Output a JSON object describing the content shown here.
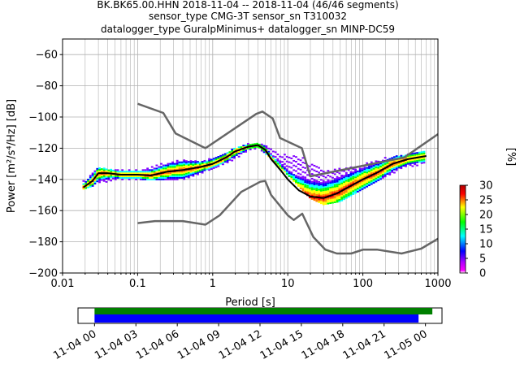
{
  "title_lines": [
    "BK.BK65.00.HHN   2018-11-04 -- 2018-11-04  (46/46 segments)",
    "sensor_type CMG-3T sensor_sn T310032",
    "datalogger_type GuralpMinimus+ datalogger_sn MINP-DC59"
  ],
  "chart_data": {
    "type": "heatmap",
    "xlabel": "Period [s]",
    "ylabel": "Power [m²/s⁴/Hz] [dB]",
    "x_scale": "log",
    "xlim": [
      0.01,
      1000
    ],
    "ylim": [
      -200,
      -50
    ],
    "x_tick_labels": [
      "0.01",
      "0.1",
      "1",
      "10",
      "100",
      "1000"
    ],
    "y_tick_labels": [
      "−200",
      "−180",
      "−160",
      "−140",
      "−120",
      "−100",
      "−80",
      "−60"
    ],
    "grid": true,
    "colorbar": {
      "label": "[%]",
      "ticks": [
        "0",
        "5",
        "10",
        "15",
        "20",
        "25",
        "30"
      ],
      "range": [
        0,
        30
      ]
    },
    "series": [
      {
        "kind": "noise_model_high",
        "color": "#666666",
        "x": [
          0.1,
          0.22,
          0.32,
          0.8,
          3.8,
          4.6,
          6.3,
          7.9,
          15.4,
          20,
          354.8,
          1000
        ],
        "y": [
          -91.5,
          -97.4,
          -110.5,
          -120,
          -98,
          -96.5,
          -101,
          -113.5,
          -120,
          -138,
          -126,
          -111
        ]
      },
      {
        "kind": "noise_model_low",
        "color": "#666666",
        "x": [
          0.1,
          0.17,
          0.4,
          0.8,
          1.24,
          2.4,
          4.3,
          5.0,
          6.0,
          10.0,
          12.0,
          15.6,
          21.9,
          31.6,
          45.0,
          70.0,
          101.0,
          154.0,
          328.0,
          600.0,
          1000.0
        ],
        "y": [
          -168,
          -166.7,
          -166.7,
          -169,
          -163,
          -148,
          -141.5,
          -141,
          -150,
          -163,
          -166,
          -162,
          -177,
          -185,
          -187.5,
          -187.5,
          -185,
          -185,
          -187.5,
          -184.4,
          -178
        ]
      },
      {
        "kind": "mode",
        "color": "#000000",
        "x": [
          0.019,
          0.025,
          0.03,
          0.04,
          0.06,
          0.1,
          0.15,
          0.25,
          0.4,
          0.7,
          1.0,
          1.5,
          2.0,
          3.0,
          4.0,
          5.0,
          6.0,
          8.0,
          10.0,
          14.0,
          20.0,
          30.0,
          45.0,
          70.0,
          100.0,
          150.0,
          250.0,
          400.0,
          700.0
        ],
        "y": [
          -145,
          -141,
          -136,
          -136,
          -137,
          -137,
          -137.5,
          -135,
          -134,
          -132,
          -130,
          -126,
          -122,
          -119,
          -118,
          -121,
          -127,
          -134,
          -140,
          -147,
          -151,
          -152,
          -149,
          -144,
          -140,
          -136,
          -130,
          -127,
          -125
        ]
      }
    ],
    "pdf_cloud": {
      "x": [
        0.019,
        0.03,
        0.05,
        0.1,
        0.2,
        0.4,
        0.7,
        1.0,
        2.0,
        3.0,
        4.0,
        5.0,
        7.0,
        10.0,
        15.0,
        20.0,
        30.0,
        50.0,
        100.0,
        200.0,
        400.0,
        700.0
      ],
      "y_low": [
        -146,
        -143,
        -140,
        -140,
        -140,
        -140,
        -136,
        -133,
        -127,
        -121,
        -120,
        -123,
        -130,
        -137,
        -146,
        -152,
        -156,
        -154,
        -146,
        -138,
        -132,
        -130
      ],
      "y_high": [
        -140,
        -132,
        -134,
        -134,
        -130,
        -127,
        -128,
        -126,
        -120,
        -117,
        -116,
        -118,
        -122,
        -124,
        -125,
        -130,
        -134,
        -133,
        -130,
        -126,
        -124,
        -121
      ]
    }
  },
  "timeline": {
    "tick_labels": [
      "11-04 00",
      "11-04 03",
      "11-04 06",
      "11-04 09",
      "11-04 12",
      "11-04 15",
      "11-04 18",
      "11-04 21",
      "11-05 00"
    ],
    "range_hours": [
      -1.2,
      25.2
    ],
    "bars": [
      {
        "color": "#008000",
        "start_hours": 0,
        "end_hours": 24.5
      },
      {
        "color": "#0000ff",
        "start_hours": 0,
        "end_hours": 23.5
      }
    ]
  }
}
